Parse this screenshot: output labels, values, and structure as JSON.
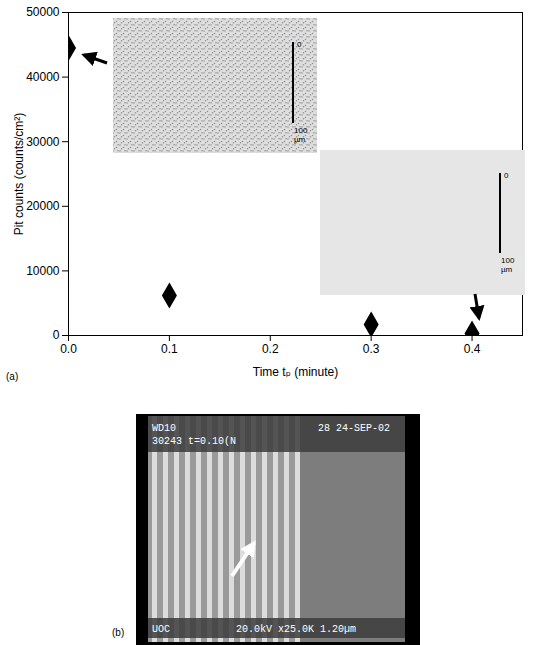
{
  "chart_data": {
    "type": "scatter",
    "x_label": "Time tₚ (minute)",
    "y_label": "Pit counts (counts/cm²)",
    "x": [
      0,
      0.1,
      0.3,
      0.4
    ],
    "values": [
      44500,
      6200,
      1700,
      300
    ],
    "color": "#000000",
    "marker": "diamond",
    "xlim": [
      0,
      0.45
    ],
    "xticks": [
      {
        "value": 0,
        "label": "0.0"
      },
      0.1,
      0.2,
      0.3,
      0.4
    ],
    "ylim": [
      0,
      50000
    ],
    "yticks": [
      0,
      10000,
      20000,
      30000,
      40000,
      50000
    ]
  },
  "panel_labels": [
    "(a)",
    "(b)"
  ],
  "insets": [
    {
      "scale_top": "0",
      "scale_bottom": "100 µm"
    },
    {
      "scale_top": "0",
      "scale_bottom": "100 µm"
    }
  ],
  "panel_b": {
    "header_left": [
      "WD10",
      "30243 t=0.10(N"
    ],
    "header_right": "28 24-SEP-02",
    "footer_left": "UOC",
    "footer_right": "20.0kV x25.0K 1.20µm"
  }
}
